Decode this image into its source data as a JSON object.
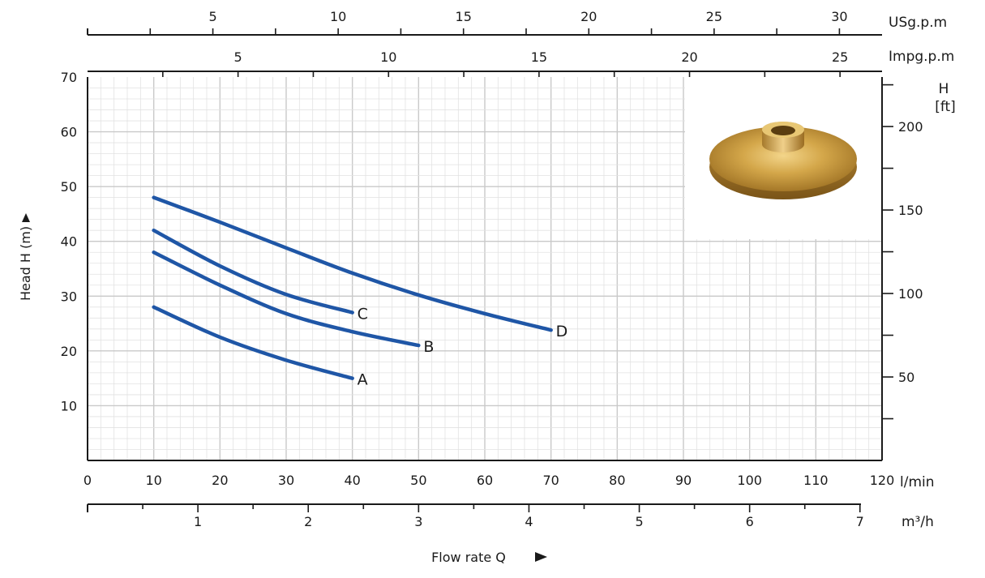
{
  "chart_data": {
    "type": "line",
    "title": "",
    "xlabel": "Flow rate Q",
    "ylabel": "Head H (m)",
    "x_unit": "l/min",
    "xlim": [
      0,
      120
    ],
    "ylim": [
      0,
      70
    ],
    "x_ticks": [
      0,
      10,
      20,
      30,
      40,
      50,
      60,
      70,
      80,
      90,
      100,
      110,
      120
    ],
    "y_ticks": [
      10,
      20,
      30,
      40,
      50,
      60,
      70
    ],
    "grid": true,
    "series_color": "#1f56a6",
    "series": [
      {
        "name": "A",
        "x": [
          10,
          20,
          30,
          40
        ],
        "y": [
          28,
          22.5,
          18.3,
          15
        ]
      },
      {
        "name": "B",
        "x": [
          10,
          20,
          30,
          40,
          50
        ],
        "y": [
          38,
          32,
          26.8,
          23.5,
          21
        ]
      },
      {
        "name": "C",
        "x": [
          10,
          20,
          30,
          40
        ],
        "y": [
          42,
          35.5,
          30.3,
          27
        ]
      },
      {
        "name": "D",
        "x": [
          10,
          20,
          30,
          40,
          50,
          60,
          70
        ],
        "y": [
          48,
          43.5,
          38.8,
          34.2,
          30.2,
          26.8,
          23.8
        ]
      }
    ],
    "secondary_axes": {
      "top_usgpm": {
        "unit": "USg.p.m",
        "ticks": [
          5,
          10,
          15,
          20,
          25,
          30
        ],
        "factor_lpm": 3.7854
      },
      "top_impgpm": {
        "unit": "Impg.p.m",
        "ticks": [
          5,
          10,
          15,
          20,
          25
        ],
        "factor_lpm": 4.54609
      },
      "bottom_m3h": {
        "unit": "m³/h",
        "ticks": [
          1,
          2,
          3,
          4,
          5,
          6,
          7
        ],
        "factor_lpm": 16.6667
      },
      "right_ft": {
        "unit_line1": "H",
        "unit_line2": "[ft]",
        "ticks": [
          50,
          100,
          150,
          200
        ],
        "factor_m": 0.3048
      }
    },
    "inset": {
      "description_icon": "bronze-impeller-image"
    }
  }
}
